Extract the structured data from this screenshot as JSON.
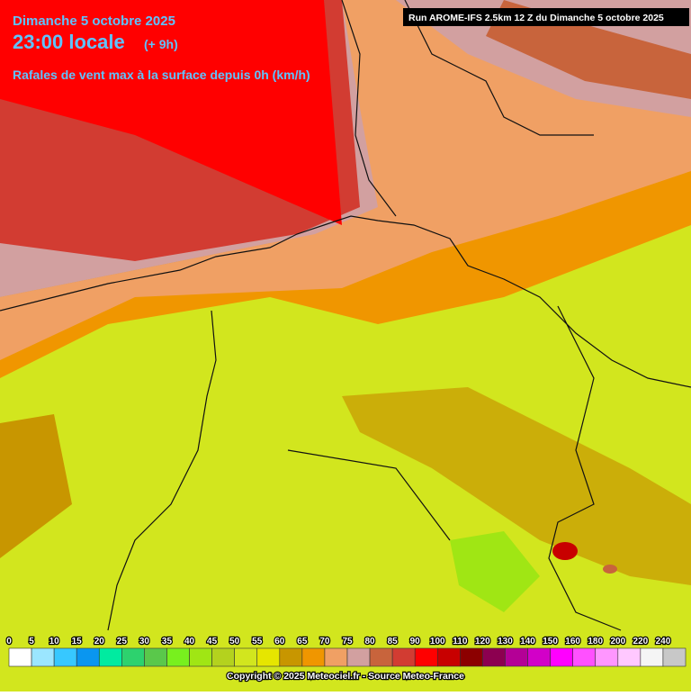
{
  "header": {
    "date": "Dimanche 5 octobre 2025",
    "time": "23:00 locale",
    "offset": "(+ 9h)",
    "subtitle": "Rafales de vent max à la surface depuis 0h (km/h)",
    "run": "Run AROME-IFS 2.5km 12 Z du Dimanche 5 octobre 2025"
  },
  "legend": {
    "items": [
      {
        "label": 0,
        "color": "#ffffff"
      },
      {
        "label": 5,
        "color": "#9be6ff"
      },
      {
        "label": 10,
        "color": "#37c8ff"
      },
      {
        "label": 15,
        "color": "#0a96f0"
      },
      {
        "label": 20,
        "color": "#00eba0"
      },
      {
        "label": 25,
        "color": "#2dd26e"
      },
      {
        "label": 30,
        "color": "#5ac84b"
      },
      {
        "label": 35,
        "color": "#78f01e"
      },
      {
        "label": 40,
        "color": "#a0e614"
      },
      {
        "label": 45,
        "color": "#b4d21e"
      },
      {
        "label": 50,
        "color": "#d2e61e"
      },
      {
        "label": 55,
        "color": "#e6e600"
      },
      {
        "label": 60,
        "color": "#c89600"
      },
      {
        "label": 65,
        "color": "#f09600"
      },
      {
        "label": 70,
        "color": "#f0a064"
      },
      {
        "label": 75,
        "color": "#d2a0a0"
      },
      {
        "label": 80,
        "color": "#c8643c"
      },
      {
        "label": 85,
        "color": "#d23c32"
      },
      {
        "label": 90,
        "color": "#ff0000"
      },
      {
        "label": 100,
        "color": "#c80000"
      },
      {
        "label": 110,
        "color": "#8c0000"
      },
      {
        "label": 120,
        "color": "#8c0050"
      },
      {
        "label": 130,
        "color": "#b40096"
      },
      {
        "label": 140,
        "color": "#d200c8"
      },
      {
        "label": 150,
        "color": "#ff00ff"
      },
      {
        "label": 160,
        "color": "#ff50ff"
      },
      {
        "label": 180,
        "color": "#ff96ff"
      },
      {
        "label": 200,
        "color": "#ffc8ff"
      },
      {
        "label": 220,
        "color": "#f5f5f5"
      },
      {
        "label": 240,
        "color": "#c8c8c8"
      }
    ]
  },
  "footer": {
    "copyright": "Copyright © 2025 Meteociel.fr - Source Meteo-France"
  }
}
